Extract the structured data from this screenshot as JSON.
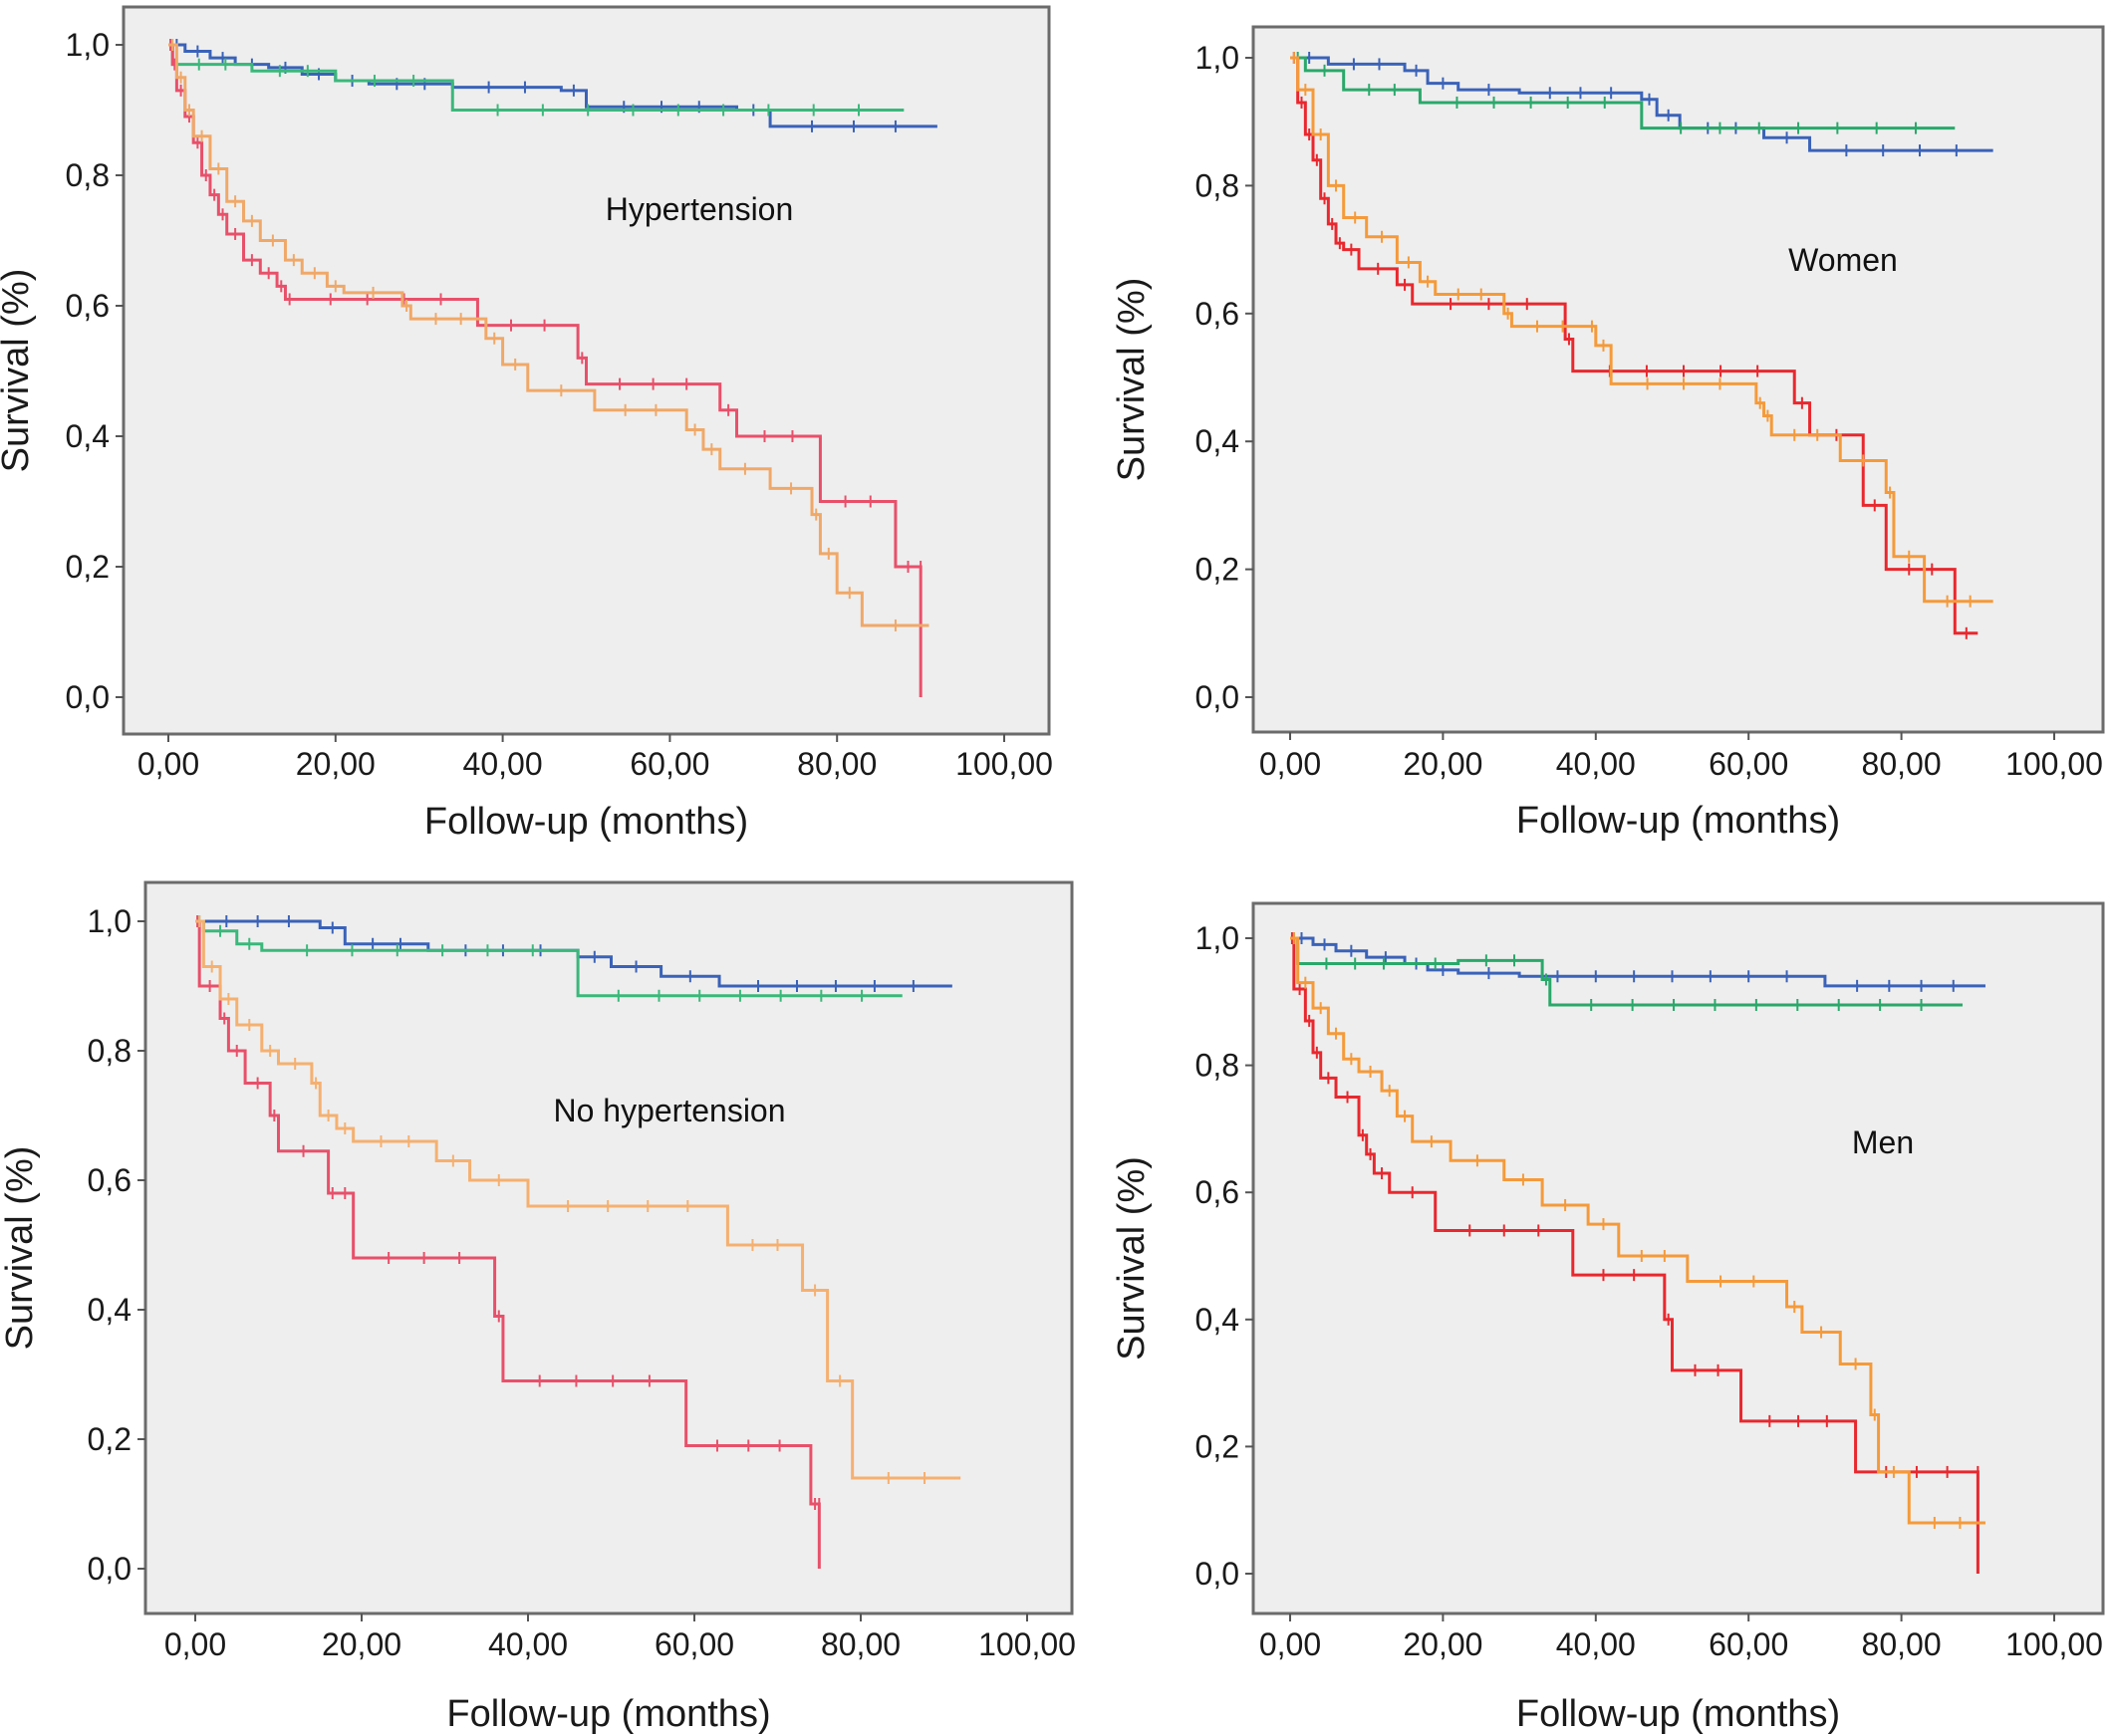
{
  "chart_data": [
    {
      "type": "line",
      "id": "hypertension",
      "title": "",
      "annotation": "Hypertension",
      "xlabel": "Follow-up (months)",
      "ylabel": "Survival (%)",
      "xlim": [
        -5,
        102
      ],
      "ylim": [
        -0.05,
        1.05
      ],
      "xticks": [
        0,
        20,
        40,
        60,
        80,
        100
      ],
      "xtick_labels": [
        "0,00",
        "20,00",
        "40,00",
        "60,00",
        "80,00",
        "100,00"
      ],
      "yticks": [
        0,
        0.2,
        0.4,
        0.6,
        0.8,
        1.0
      ],
      "ytick_labels": [
        "0,0",
        "0,2",
        "0,4",
        "0,6",
        "0,8",
        "1,0"
      ],
      "grid": false,
      "series": [
        {
          "name": "blue",
          "color": "#3a62b8",
          "step": true,
          "x": [
            0,
            2,
            5,
            8,
            12,
            16,
            20,
            24,
            34,
            47,
            50,
            68,
            72,
            92
          ],
          "y": [
            1.0,
            0.99,
            0.98,
            0.97,
            0.965,
            0.955,
            0.945,
            0.94,
            0.935,
            0.93,
            0.905,
            0.9,
            0.875,
            0.875
          ]
        },
        {
          "name": "green",
          "color": "#3ab87a",
          "step": true,
          "x": [
            0,
            0.5,
            10,
            20,
            34,
            88
          ],
          "y": [
            1.0,
            0.97,
            0.96,
            0.945,
            0.9,
            0.9
          ]
        },
        {
          "name": "red",
          "color": "#e8506a",
          "step": true,
          "x": [
            0,
            0.5,
            1,
            2,
            3,
            4,
            5,
            6,
            7,
            9,
            11,
            13,
            14,
            15,
            37,
            49,
            50,
            66,
            68,
            78,
            87,
            90,
            90.01
          ],
          "y": [
            1.0,
            0.97,
            0.93,
            0.89,
            0.85,
            0.8,
            0.77,
            0.74,
            0.71,
            0.67,
            0.65,
            0.63,
            0.61,
            0.61,
            0.57,
            0.52,
            0.48,
            0.44,
            0.4,
            0.3,
            0.2,
            0.2,
            0.0
          ]
        },
        {
          "name": "orange",
          "color": "#f0a868",
          "step": true,
          "x": [
            0,
            1,
            2,
            3,
            5,
            7,
            9,
            11,
            14,
            16,
            19,
            21,
            28,
            29,
            38,
            40,
            43,
            51,
            62,
            64,
            66,
            72,
            77,
            78,
            80,
            83,
            91
          ],
          "y": [
            1.0,
            0.95,
            0.9,
            0.86,
            0.81,
            0.76,
            0.73,
            0.7,
            0.67,
            0.65,
            0.63,
            0.62,
            0.6,
            0.58,
            0.55,
            0.51,
            0.47,
            0.44,
            0.41,
            0.38,
            0.35,
            0.32,
            0.28,
            0.22,
            0.16,
            0.11,
            0.11
          ]
        }
      ]
    },
    {
      "type": "line",
      "id": "women",
      "title": "",
      "annotation": "Women",
      "xlabel": "Follow-up (months)",
      "ylabel": "Survival (%)",
      "xlim": [
        -5,
        102
      ],
      "ylim": [
        -0.05,
        1.05
      ],
      "xticks": [
        0,
        20,
        40,
        60,
        80,
        100
      ],
      "xtick_labels": [
        "0,00",
        "20,00",
        "40,00",
        "60,00",
        "80,00",
        "100,00"
      ],
      "yticks": [
        0,
        0.2,
        0.4,
        0.6,
        0.8,
        1.0
      ],
      "ytick_labels": [
        "0,0",
        "0,2",
        "0,4",
        "0,6",
        "0,8",
        "1,0"
      ],
      "grid": false,
      "series": [
        {
          "name": "blue",
          "color": "#3a62b8",
          "step": true,
          "x": [
            0,
            5,
            15,
            18,
            22,
            30,
            46,
            48,
            51,
            62,
            68,
            92
          ],
          "y": [
            1.0,
            0.99,
            0.98,
            0.96,
            0.95,
            0.945,
            0.935,
            0.91,
            0.89,
            0.875,
            0.855,
            0.855
          ]
        },
        {
          "name": "green",
          "color": "#2aa86a",
          "step": true,
          "x": [
            0,
            2,
            7,
            17,
            46,
            87
          ],
          "y": [
            1.0,
            0.98,
            0.95,
            0.93,
            0.89,
            0.89
          ]
        },
        {
          "name": "red",
          "color": "#e8282e",
          "step": true,
          "x": [
            0,
            1,
            2,
            3,
            4,
            5,
            6,
            7,
            9,
            14,
            16,
            36,
            37,
            66,
            68,
            75,
            78,
            87,
            90
          ],
          "y": [
            1.0,
            0.93,
            0.88,
            0.84,
            0.78,
            0.74,
            0.71,
            0.7,
            0.67,
            0.645,
            0.615,
            0.56,
            0.51,
            0.46,
            0.41,
            0.3,
            0.2,
            0.1,
            0.1
          ]
        },
        {
          "name": "orange",
          "color": "#f59a3a",
          "step": true,
          "x": [
            0,
            1,
            3,
            5,
            7,
            10,
            14,
            17,
            19,
            28,
            29,
            39,
            40,
            42,
            61,
            62,
            63,
            72,
            78,
            79,
            83,
            92
          ],
          "y": [
            1.0,
            0.95,
            0.88,
            0.8,
            0.75,
            0.72,
            0.68,
            0.65,
            0.63,
            0.6,
            0.58,
            0.58,
            0.55,
            0.49,
            0.46,
            0.44,
            0.41,
            0.37,
            0.32,
            0.22,
            0.15,
            0.15
          ]
        }
      ]
    },
    {
      "type": "line",
      "id": "no-hypertension",
      "title": "",
      "annotation": "No hypertension",
      "xlabel": "Follow-up (months)",
      "ylabel": "Survival (%)",
      "xlim": [
        -5,
        102
      ],
      "ylim": [
        -0.05,
        1.05
      ],
      "xticks": [
        0,
        20,
        40,
        60,
        80,
        100
      ],
      "xtick_labels": [
        "0,00",
        "20,00",
        "40,00",
        "60,00",
        "80,00",
        "100,00"
      ],
      "yticks": [
        0,
        0.2,
        0.4,
        0.6,
        0.8,
        1.0
      ],
      "ytick_labels": [
        "0,0",
        "0,2",
        "0,4",
        "0,6",
        "0,8",
        "1,0"
      ],
      "grid": false,
      "series": [
        {
          "name": "blue",
          "color": "#3a62b8",
          "step": true,
          "x": [
            0,
            15,
            18,
            28,
            46,
            50,
            56,
            63,
            91
          ],
          "y": [
            1.0,
            0.99,
            0.965,
            0.955,
            0.945,
            0.93,
            0.915,
            0.9,
            0.9
          ]
        },
        {
          "name": "green",
          "color": "#3ab87a",
          "step": true,
          "x": [
            0,
            1,
            5,
            8,
            46,
            85
          ],
          "y": [
            1.0,
            0.985,
            0.965,
            0.955,
            0.885,
            0.885
          ]
        },
        {
          "name": "red",
          "color": "#e8506a",
          "step": true,
          "x": [
            0,
            0.5,
            3,
            4,
            6,
            9,
            10,
            16,
            17,
            19,
            36,
            37,
            59,
            74,
            75,
            75.01
          ],
          "y": [
            1.0,
            0.9,
            0.85,
            0.8,
            0.75,
            0.7,
            0.645,
            0.58,
            0.58,
            0.48,
            0.39,
            0.29,
            0.19,
            0.1,
            0.1,
            0.0
          ]
        },
        {
          "name": "orange",
          "color": "#f5b070",
          "step": true,
          "x": [
            0,
            1,
            3,
            5,
            8,
            10,
            14,
            15,
            17,
            19,
            29,
            33,
            40,
            64,
            73,
            76,
            79,
            92
          ],
          "y": [
            1.0,
            0.93,
            0.88,
            0.84,
            0.8,
            0.78,
            0.75,
            0.7,
            0.68,
            0.66,
            0.63,
            0.6,
            0.56,
            0.5,
            0.43,
            0.29,
            0.14,
            0.14
          ]
        }
      ]
    },
    {
      "type": "line",
      "id": "men",
      "title": "",
      "annotation": "Men",
      "xlabel": "Follow-up (months)",
      "ylabel": "Survival (%)",
      "xlim": [
        -5,
        102
      ],
      "ylim": [
        -0.05,
        1.05
      ],
      "xticks": [
        0,
        20,
        40,
        60,
        80,
        100
      ],
      "xtick_labels": [
        "0,00",
        "20,00",
        "40,00",
        "60,00",
        "80,00",
        "100,00"
      ],
      "yticks": [
        0,
        0.2,
        0.4,
        0.6,
        0.8,
        1.0
      ],
      "ytick_labels": [
        "0,0",
        "0,2",
        "0,4",
        "0,6",
        "0,8",
        "1,0"
      ],
      "grid": false,
      "series": [
        {
          "name": "blue",
          "color": "#3a62b8",
          "step": true,
          "x": [
            0,
            3,
            6,
            10,
            15,
            18,
            22,
            30,
            70,
            91
          ],
          "y": [
            1.0,
            0.99,
            0.98,
            0.97,
            0.96,
            0.95,
            0.945,
            0.94,
            0.925,
            0.925
          ]
        },
        {
          "name": "green",
          "color": "#2aa86a",
          "step": true,
          "x": [
            0,
            1,
            16,
            22,
            33,
            34,
            88
          ],
          "y": [
            1.0,
            0.96,
            0.96,
            0.965,
            0.935,
            0.895,
            0.895
          ]
        },
        {
          "name": "red",
          "color": "#e8282e",
          "step": true,
          "x": [
            0,
            0.5,
            2,
            3,
            4,
            6,
            9,
            10,
            11,
            13,
            19,
            37,
            49,
            50,
            59,
            74,
            90,
            90.01
          ],
          "y": [
            1.0,
            0.92,
            0.87,
            0.82,
            0.78,
            0.75,
            0.69,
            0.66,
            0.63,
            0.6,
            0.54,
            0.47,
            0.4,
            0.32,
            0.24,
            0.16,
            0.16,
            0.0
          ]
        },
        {
          "name": "orange",
          "color": "#f59a3a",
          "step": true,
          "x": [
            0,
            1,
            3,
            5,
            7,
            9,
            12,
            14,
            16,
            21,
            28,
            33,
            39,
            43,
            52,
            65,
            67,
            72,
            76,
            77,
            81,
            91
          ],
          "y": [
            1.0,
            0.93,
            0.89,
            0.85,
            0.81,
            0.79,
            0.76,
            0.72,
            0.68,
            0.65,
            0.62,
            0.58,
            0.55,
            0.5,
            0.46,
            0.42,
            0.38,
            0.33,
            0.25,
            0.16,
            0.08,
            0.08
          ]
        }
      ]
    }
  ]
}
